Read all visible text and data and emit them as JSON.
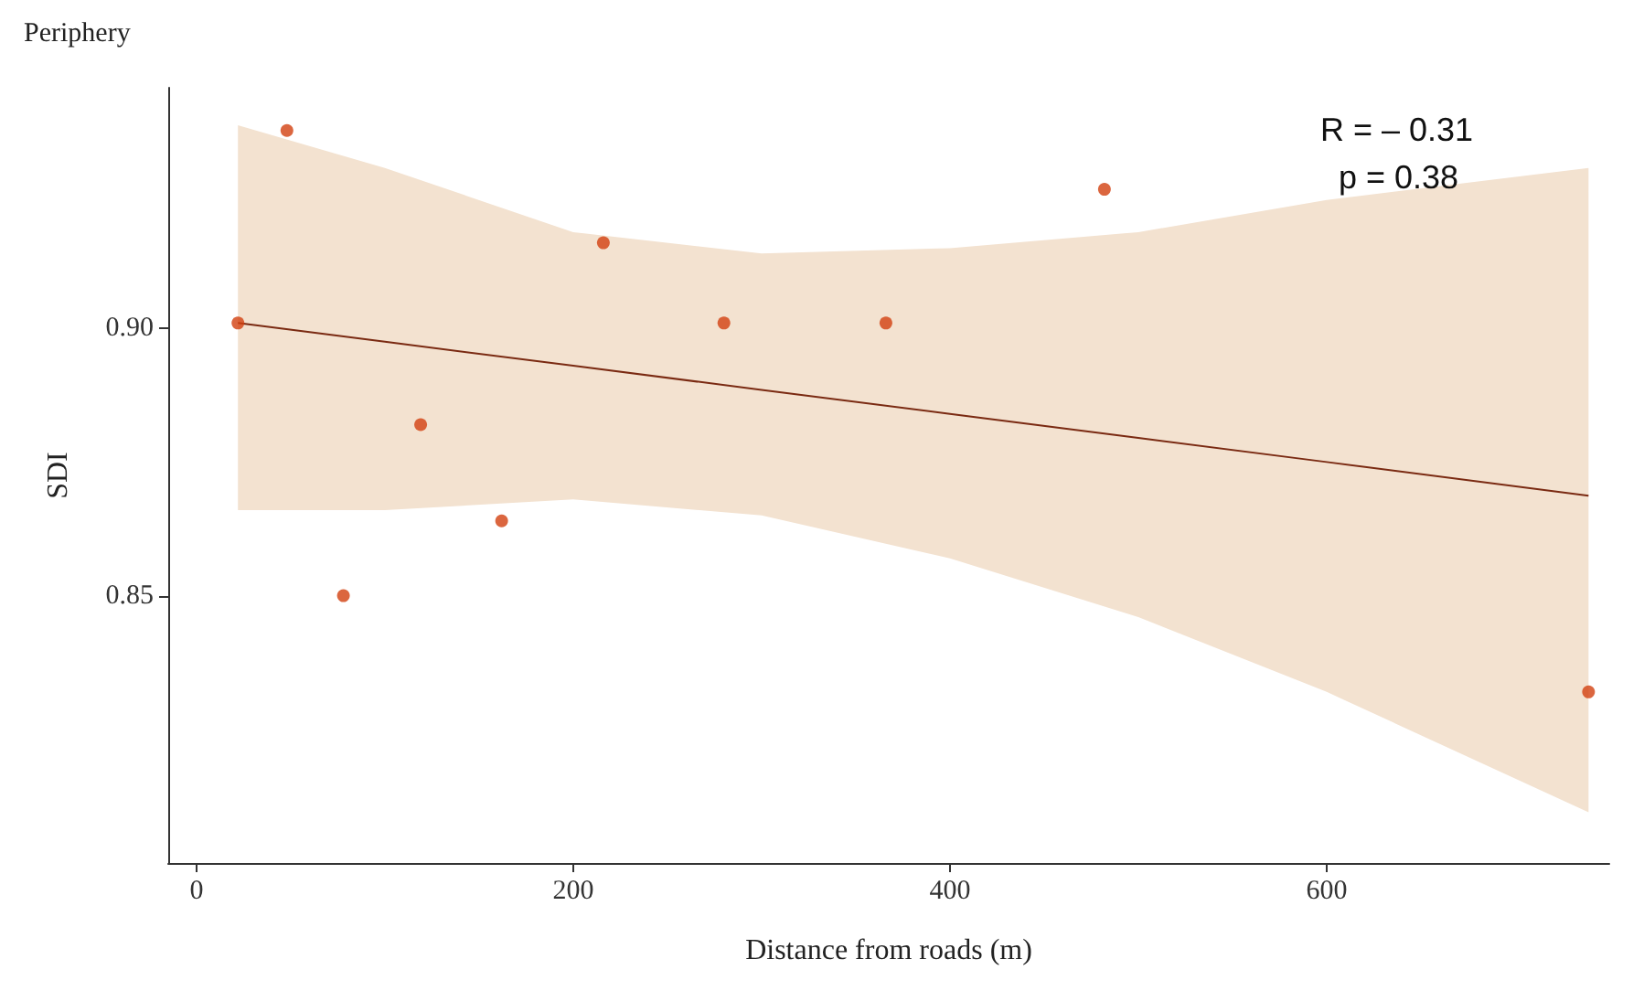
{
  "chart_data": {
    "type": "scatter",
    "title": "Periphery",
    "xlabel": "Distance from roads (m)",
    "ylabel": "SDI",
    "annotations": [
      "R = – 0.31",
      "p = 0.38"
    ],
    "series": [
      {
        "color": "#d2400f",
        "marker": "circle",
        "x": [
          22,
          48,
          78,
          119,
          162,
          216,
          280,
          366,
          482,
          739
        ],
        "values": [
          0.901,
          0.937,
          0.85,
          0.882,
          0.864,
          0.916,
          0.901,
          0.901,
          0.926,
          0.832
        ]
      },
      {
        "type": "line",
        "color": "#7a2a12",
        "marker": "none",
        "line_style": "solid",
        "x": [
          22,
          100,
          200,
          300,
          400,
          500,
          600,
          739
        ],
        "values": [
          0.901,
          0.8975,
          0.893,
          0.8885,
          0.884,
          0.8795,
          0.875,
          0.8687
        ],
        "lower": [
          0.866,
          0.866,
          0.868,
          0.865,
          0.857,
          0.846,
          0.832,
          0.8095
        ],
        "upper": [
          0.938,
          0.93,
          0.918,
          0.914,
          0.915,
          0.918,
          0.924,
          0.93
        ]
      }
    ],
    "xlim": [
      -15,
      750
    ],
    "xticks": [
      0,
      200,
      400,
      600
    ],
    "ylim": [
      0.8,
      0.945
    ],
    "yticks": [
      {
        "value": 0.85,
        "label": "0.85"
      },
      {
        "value": 0.9,
        "label": "0.90"
      }
    ],
    "grid": false
  }
}
